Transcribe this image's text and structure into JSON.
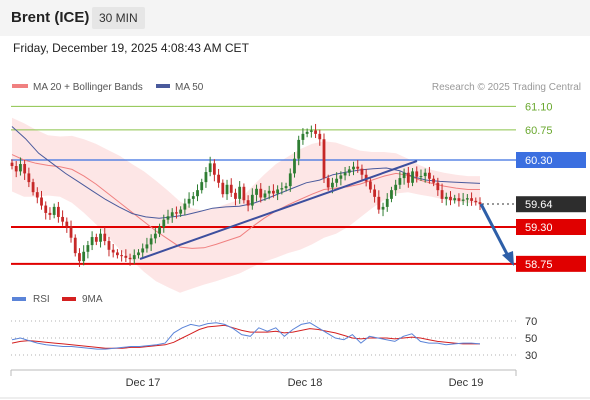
{
  "header": {
    "symbol": "Brent (ICE)",
    "timeframe": "30 MIN",
    "timestamp": "Friday, December 19, 2025 4:08:43 AM CET"
  },
  "legend": {
    "bollinger": "MA 20 + Bollinger Bands",
    "ma50": "MA 50",
    "credit": "Research © 2025 Trading Central",
    "rsi": "RSI",
    "rsi_ma": "9MA"
  },
  "colors": {
    "up_candle": "#2e7d32",
    "down_candle": "#c62828",
    "bollinger_fill": "#fde0e0",
    "bollinger_line": "#f08080",
    "ma50": "#4a5a9c",
    "resistance": "#3b6fe0",
    "target": "#e00000",
    "minor_resistance": "#8bc34a",
    "trendline": "#3d4f9e",
    "rsi_line": "#5b84d8",
    "rsi_ma_line": "#d42020"
  },
  "chart_data": [
    {
      "type": "candlestick",
      "x_ticks": [
        "Dec 17",
        "Dec 18",
        "Dec 19"
      ],
      "ylim": [
        58.5,
        61.3
      ],
      "levels": [
        {
          "value": 61.1,
          "label": "61.10",
          "kind": "minor-resistance"
        },
        {
          "value": 60.75,
          "label": "60.75",
          "kind": "minor-resistance"
        },
        {
          "value": 60.3,
          "label": "60.30",
          "kind": "resistance"
        },
        {
          "value": 59.3,
          "label": "59.30",
          "kind": "target"
        },
        {
          "value": 58.75,
          "label": "58.75",
          "kind": "target"
        }
      ],
      "last_price": {
        "value": 59.64,
        "label": "59.64"
      },
      "closes": [
        60.21,
        60.13,
        60.24,
        60.1,
        59.97,
        59.82,
        59.74,
        59.62,
        59.51,
        59.48,
        59.6,
        59.45,
        59.38,
        59.31,
        59.14,
        58.91,
        58.79,
        58.93,
        59.03,
        59.15,
        59.08,
        59.2,
        59.09,
        58.96,
        58.92,
        58.88,
        58.87,
        58.84,
        58.82,
        58.88,
        58.92,
        58.98,
        59.04,
        59.13,
        59.2,
        59.3,
        59.41,
        59.46,
        59.52,
        59.5,
        59.56,
        59.65,
        59.72,
        59.76,
        59.85,
        59.97,
        60.12,
        60.25,
        60.08,
        59.96,
        59.79,
        59.93,
        59.81,
        59.72,
        59.9,
        59.7,
        59.62,
        59.78,
        59.87,
        59.74,
        59.8,
        59.84,
        59.8,
        59.86,
        59.88,
        59.91,
        60.1,
        60.32,
        60.6,
        60.69,
        60.72,
        60.74,
        60.69,
        60.61,
        60.03,
        59.89,
        59.96,
        60.02,
        60.07,
        60.11,
        60.16,
        60.2,
        60.17,
        60.08,
        59.98,
        59.86,
        59.75,
        59.56,
        59.6,
        59.72,
        59.85,
        59.93,
        60.03,
        60.11,
        59.96,
        60.13,
        60.05,
        60.06,
        60.11,
        60.02,
        59.96,
        59.85,
        59.72,
        59.75,
        59.7,
        59.73,
        59.69,
        59.71,
        59.73,
        59.69,
        59.67,
        59.64
      ],
      "ma20": [
        60.38,
        60.3,
        60.25,
        60.22,
        60.2,
        60.16,
        60.06,
        59.94,
        59.8,
        59.66,
        59.52,
        59.38,
        59.24,
        59.12,
        59.0,
        58.98,
        58.99,
        59.04,
        59.1,
        59.16,
        59.3,
        59.43,
        59.54,
        59.63,
        59.71,
        59.79,
        59.86,
        59.88,
        59.9,
        59.94,
        60.0,
        60.06,
        60.1,
        60.07,
        60.0,
        59.95,
        59.91,
        59.88,
        59.86,
        59.86
      ],
      "ma50": [
        60.8,
        60.62,
        60.4,
        60.25,
        60.1,
        59.97,
        59.84,
        59.71,
        59.6,
        59.5,
        59.45,
        59.43,
        59.45,
        59.48,
        59.53,
        59.58,
        59.6,
        59.61,
        59.65,
        59.72,
        59.8,
        59.88,
        59.96,
        60.0,
        60.08,
        60.12,
        60.15,
        60.17,
        60.18,
        60.14,
        60.05,
        60.0,
        59.98,
        59.97,
        59.96,
        59.95
      ],
      "rsi": [
        48,
        50,
        47,
        44,
        42,
        41,
        40,
        40,
        39,
        38,
        37,
        37,
        38,
        39,
        40,
        40,
        41,
        42,
        44,
        56,
        62,
        66,
        64,
        67,
        68,
        66,
        61,
        54,
        52,
        62,
        58,
        62,
        52,
        60,
        66,
        68,
        62,
        56,
        50,
        48,
        54,
        44,
        52,
        50,
        48,
        46,
        52,
        55,
        46,
        44,
        44,
        42,
        43,
        44,
        44,
        43
      ],
      "rsi_ma": [
        44,
        46,
        47,
        46,
        45,
        44,
        43,
        42,
        41,
        40,
        39,
        38,
        38,
        38,
        39,
        39,
        40,
        41,
        42,
        45,
        50,
        55,
        60,
        63,
        64,
        65,
        62,
        59,
        57,
        57,
        57,
        58,
        56,
        57,
        59,
        61,
        60,
        58,
        56,
        53,
        50,
        49,
        50,
        50,
        50,
        49,
        50,
        51,
        50,
        48,
        46,
        45,
        44,
        43,
        43,
        43
      ],
      "rsi_ticks": [
        "70",
        "50",
        "30"
      ]
    }
  ]
}
